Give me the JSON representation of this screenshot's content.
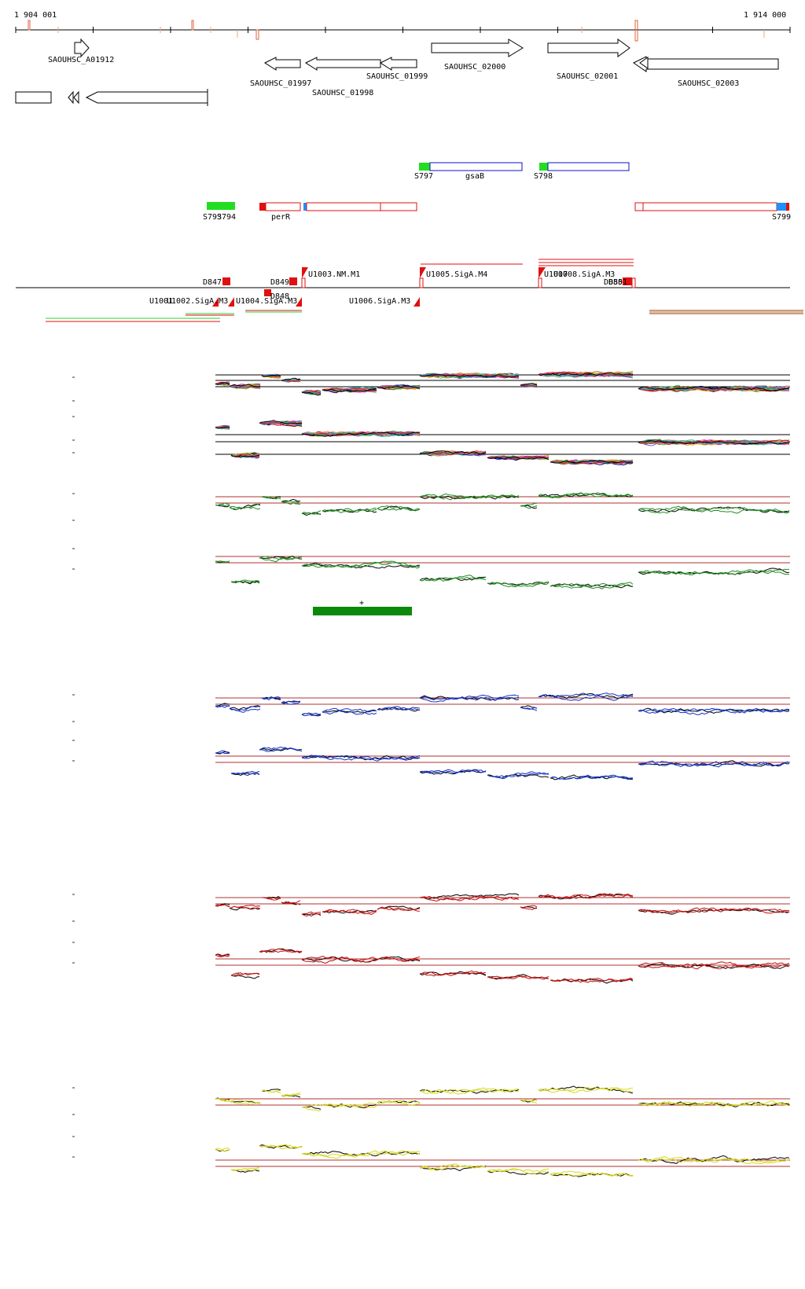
{
  "coords": {
    "start_label": "1 904 001",
    "end_label": "1 914 000"
  },
  "genes": [
    {
      "id": "g1912",
      "label": "SAOUHSC_A01912"
    },
    {
      "id": "g1997",
      "label": "SAOUHSC_01997"
    },
    {
      "id": "g1998",
      "label": "SAOUHSC_01998"
    },
    {
      "id": "g1999",
      "label": "SAOUHSC_01999"
    },
    {
      "id": "g2000",
      "label": "SAOUHSC_02000"
    },
    {
      "id": "g2001",
      "label": "SAOUHSC_02001"
    },
    {
      "id": "g2003",
      "label": "SAOUHSC_02003"
    }
  ],
  "features": {
    "s797": "S797",
    "gsab": "gsaB",
    "s798": "S798",
    "s793": "S793",
    "s794": "S794",
    "perr": "perR",
    "s799": "S799"
  },
  "promoters": {
    "d847": "D847",
    "d848": "D848",
    "d849": "D849",
    "d850": "D850",
    "d851": "D851",
    "u1001": "U1001",
    "u1002": "U1002.SigA.M3",
    "u1003": "U1003.NM.M1",
    "u1004": "U1004.SigA.M3",
    "u1005": "U1005.SigA.M4",
    "u1006": "U1006.SigA.M3",
    "u1007": "U1007",
    "u1008": "U1008.SigA.M3"
  },
  "segment": {
    "marker": "+"
  },
  "colors": {
    "gene_outline": "#000000",
    "feature_blue": "#1010c8",
    "feature_red": "#e01010",
    "feature_green": "#22dd22",
    "green_track": "#228b22",
    "blue_track": "#1030c0",
    "red_track": "#c01010",
    "yellow_track": "#d8d820",
    "guide": "#b03030",
    "segment": "#0a8a0a"
  }
}
